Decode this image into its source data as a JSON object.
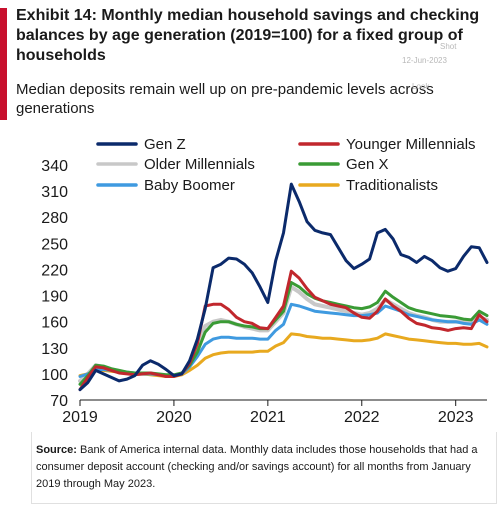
{
  "header": {
    "title": "Exhibit 14: Monthly median household savings and checking balances by age generation (2019=100)  for a fixed group of households",
    "subtitle": "Median deposits remain well up on pre-pandemic levels across generations"
  },
  "watermarks": {
    "w1": "Shot",
    "w2": "12-Jun-2023",
    "w3": "Look"
  },
  "colors": {
    "accent": "#c8102e",
    "gen_z": "#0b2a6b",
    "younger_millennials": "#c1272d",
    "older_millennials": "#c8c8c8",
    "gen_x": "#3a9b35",
    "baby_boomer": "#3f9ae0",
    "traditionalists": "#e8a91f"
  },
  "footer": {
    "source_label": "Source:",
    "source_text": " Bank of America internal data. Monthly data includes those households  that had a consumer deposit account (checking and/or savings account) for all months from January 2019 through May 2023."
  },
  "chart_data": {
    "type": "line",
    "title": "",
    "xlabel": "",
    "ylabel": "",
    "ylim": [
      70,
      340
    ],
    "xlim": [
      "2019-01",
      "2023-05"
    ],
    "y_ticks": [
      70,
      100,
      130,
      160,
      190,
      220,
      250,
      280,
      310,
      340
    ],
    "x_ticks": [
      "2019",
      "2020",
      "2021",
      "2022",
      "2023"
    ],
    "grid": false,
    "legend_position": "top",
    "x": [
      "2019-01",
      "2019-02",
      "2019-03",
      "2019-04",
      "2019-05",
      "2019-06",
      "2019-07",
      "2019-08",
      "2019-09",
      "2019-10",
      "2019-11",
      "2019-12",
      "2020-01",
      "2020-02",
      "2020-03",
      "2020-04",
      "2020-05",
      "2020-06",
      "2020-07",
      "2020-08",
      "2020-09",
      "2020-10",
      "2020-11",
      "2020-12",
      "2021-01",
      "2021-02",
      "2021-03",
      "2021-04",
      "2021-05",
      "2021-06",
      "2021-07",
      "2021-08",
      "2021-09",
      "2021-10",
      "2021-11",
      "2021-12",
      "2022-01",
      "2022-02",
      "2022-03",
      "2022-04",
      "2022-05",
      "2022-06",
      "2022-07",
      "2022-08",
      "2022-09",
      "2022-10",
      "2022-11",
      "2022-12",
      "2023-01",
      "2023-02",
      "2023-03",
      "2023-04",
      "2023-05"
    ],
    "series": [
      {
        "name": "Gen Z",
        "color_key": "gen_z",
        "values": [
          82,
          90,
          104,
          100,
          96,
          92,
          94,
          98,
          110,
          115,
          111,
          105,
          98,
          100,
          115,
          140,
          175,
          222,
          226,
          233,
          232,
          226,
          216,
          200,
          182,
          230,
          262,
          318,
          298,
          275,
          265,
          262,
          260,
          245,
          230,
          221,
          226,
          232,
          262,
          266,
          255,
          237,
          234,
          228,
          235,
          230,
          222,
          218,
          221,
          235,
          246,
          245,
          228
        ]
      },
      {
        "name": "Younger Millennials",
        "color_key": "younger_millennials",
        "values": [
          82,
          96,
          108,
          107,
          104,
          101,
          100,
          99,
          100,
          101,
          99,
          97,
          97,
          100,
          112,
          135,
          178,
          180,
          180,
          174,
          165,
          160,
          158,
          153,
          152,
          165,
          178,
          218,
          210,
          198,
          188,
          184,
          180,
          178,
          176,
          170,
          165,
          164,
          172,
          186,
          178,
          172,
          164,
          158,
          156,
          153,
          152,
          150,
          152,
          153,
          152,
          168,
          160
        ]
      },
      {
        "name": "Older Millennials",
        "color_key": "older_millennials",
        "values": [
          92,
          100,
          110,
          108,
          105,
          103,
          101,
          100,
          100,
          100,
          99,
          98,
          98,
          100,
          110,
          130,
          155,
          160,
          162,
          160,
          157,
          154,
          152,
          150,
          150,
          160,
          170,
          200,
          194,
          186,
          180,
          178,
          176,
          174,
          172,
          170,
          168,
          170,
          175,
          185,
          180,
          175,
          170,
          167,
          165,
          162,
          160,
          160,
          160,
          160,
          158,
          165,
          162
        ]
      },
      {
        "name": "Gen X",
        "color_key": "gen_x",
        "values": [
          88,
          98,
          110,
          109,
          106,
          104,
          102,
          101,
          101,
          101,
          100,
          99,
          99,
          101,
          110,
          125,
          148,
          158,
          160,
          160,
          157,
          155,
          154,
          152,
          152,
          162,
          172,
          205,
          200,
          192,
          187,
          184,
          182,
          180,
          178,
          176,
          175,
          177,
          182,
          195,
          188,
          182,
          176,
          173,
          171,
          169,
          167,
          166,
          165,
          163,
          162,
          172,
          167
        ]
      },
      {
        "name": "Baby Boomer",
        "color_key": "baby_boomer",
        "values": [
          97,
          100,
          105,
          105,
          104,
          103,
          102,
          101,
          100,
          100,
          99,
          98,
          98,
          100,
          108,
          120,
          134,
          140,
          142,
          142,
          141,
          141,
          141,
          140,
          140,
          150,
          157,
          180,
          178,
          175,
          172,
          171,
          170,
          169,
          168,
          167,
          167,
          168,
          170,
          178,
          175,
          172,
          168,
          166,
          164,
          162,
          161,
          160,
          160,
          158,
          157,
          162,
          157
        ]
      },
      {
        "name": "Traditionalists",
        "color_key": "traditionalists",
        "values": [
          98,
          100,
          104,
          104,
          103,
          102,
          101,
          100,
          100,
          99,
          98,
          97,
          97,
          99,
          104,
          110,
          118,
          122,
          124,
          125,
          125,
          125,
          125,
          126,
          126,
          132,
          136,
          146,
          145,
          143,
          142,
          141,
          141,
          140,
          139,
          138,
          138,
          139,
          141,
          146,
          144,
          142,
          140,
          139,
          138,
          137,
          136,
          135,
          135,
          134,
          134,
          135,
          131
        ]
      }
    ]
  }
}
